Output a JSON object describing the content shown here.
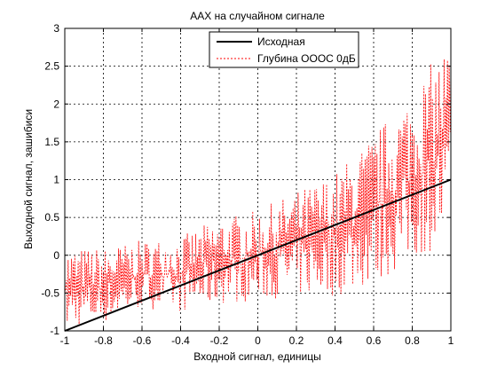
{
  "chart_data": {
    "type": "line",
    "title": "ААХ на случайном сигнале",
    "xlabel": "Входной сигнал, единицы",
    "ylabel": "Выходной сигнал, зашибиси",
    "xlim": [
      -1,
      1
    ],
    "ylim": [
      -1,
      3
    ],
    "xticks": [
      "-1",
      "-0.8",
      "-0.6",
      "-0.4",
      "-0.2",
      "0",
      "0.2",
      "0.4",
      "0.6",
      "0.8",
      "1"
    ],
    "yticks": [
      "-1",
      "-0.5",
      "0",
      "0.5",
      "1",
      "1.5",
      "2",
      "2.5",
      "3"
    ],
    "grid": true,
    "legend_position": "top-right",
    "series": [
      {
        "name": "Исходная",
        "color": "#000000",
        "style": "solid",
        "x": [
          -1,
          1
        ],
        "y": [
          -1,
          1
        ]
      },
      {
        "name": "Глубина ООOC 0дБ",
        "color": "#ff0000",
        "style": "dashed",
        "band_x": [
          -1,
          -0.8,
          -0.6,
          -0.4,
          -0.2,
          0,
          0.2,
          0.4,
          0.6,
          0.8,
          1
        ],
        "band_upper": [
          0.1,
          0.1,
          0.2,
          0.25,
          0.5,
          0.6,
          0.85,
          1.1,
          1.6,
          2.2,
          2.9
        ],
        "band_lower": [
          -1,
          -0.9,
          -0.7,
          -0.75,
          -0.65,
          -0.6,
          -0.55,
          -0.55,
          -0.4,
          -0.1,
          0.2
        ]
      }
    ]
  }
}
